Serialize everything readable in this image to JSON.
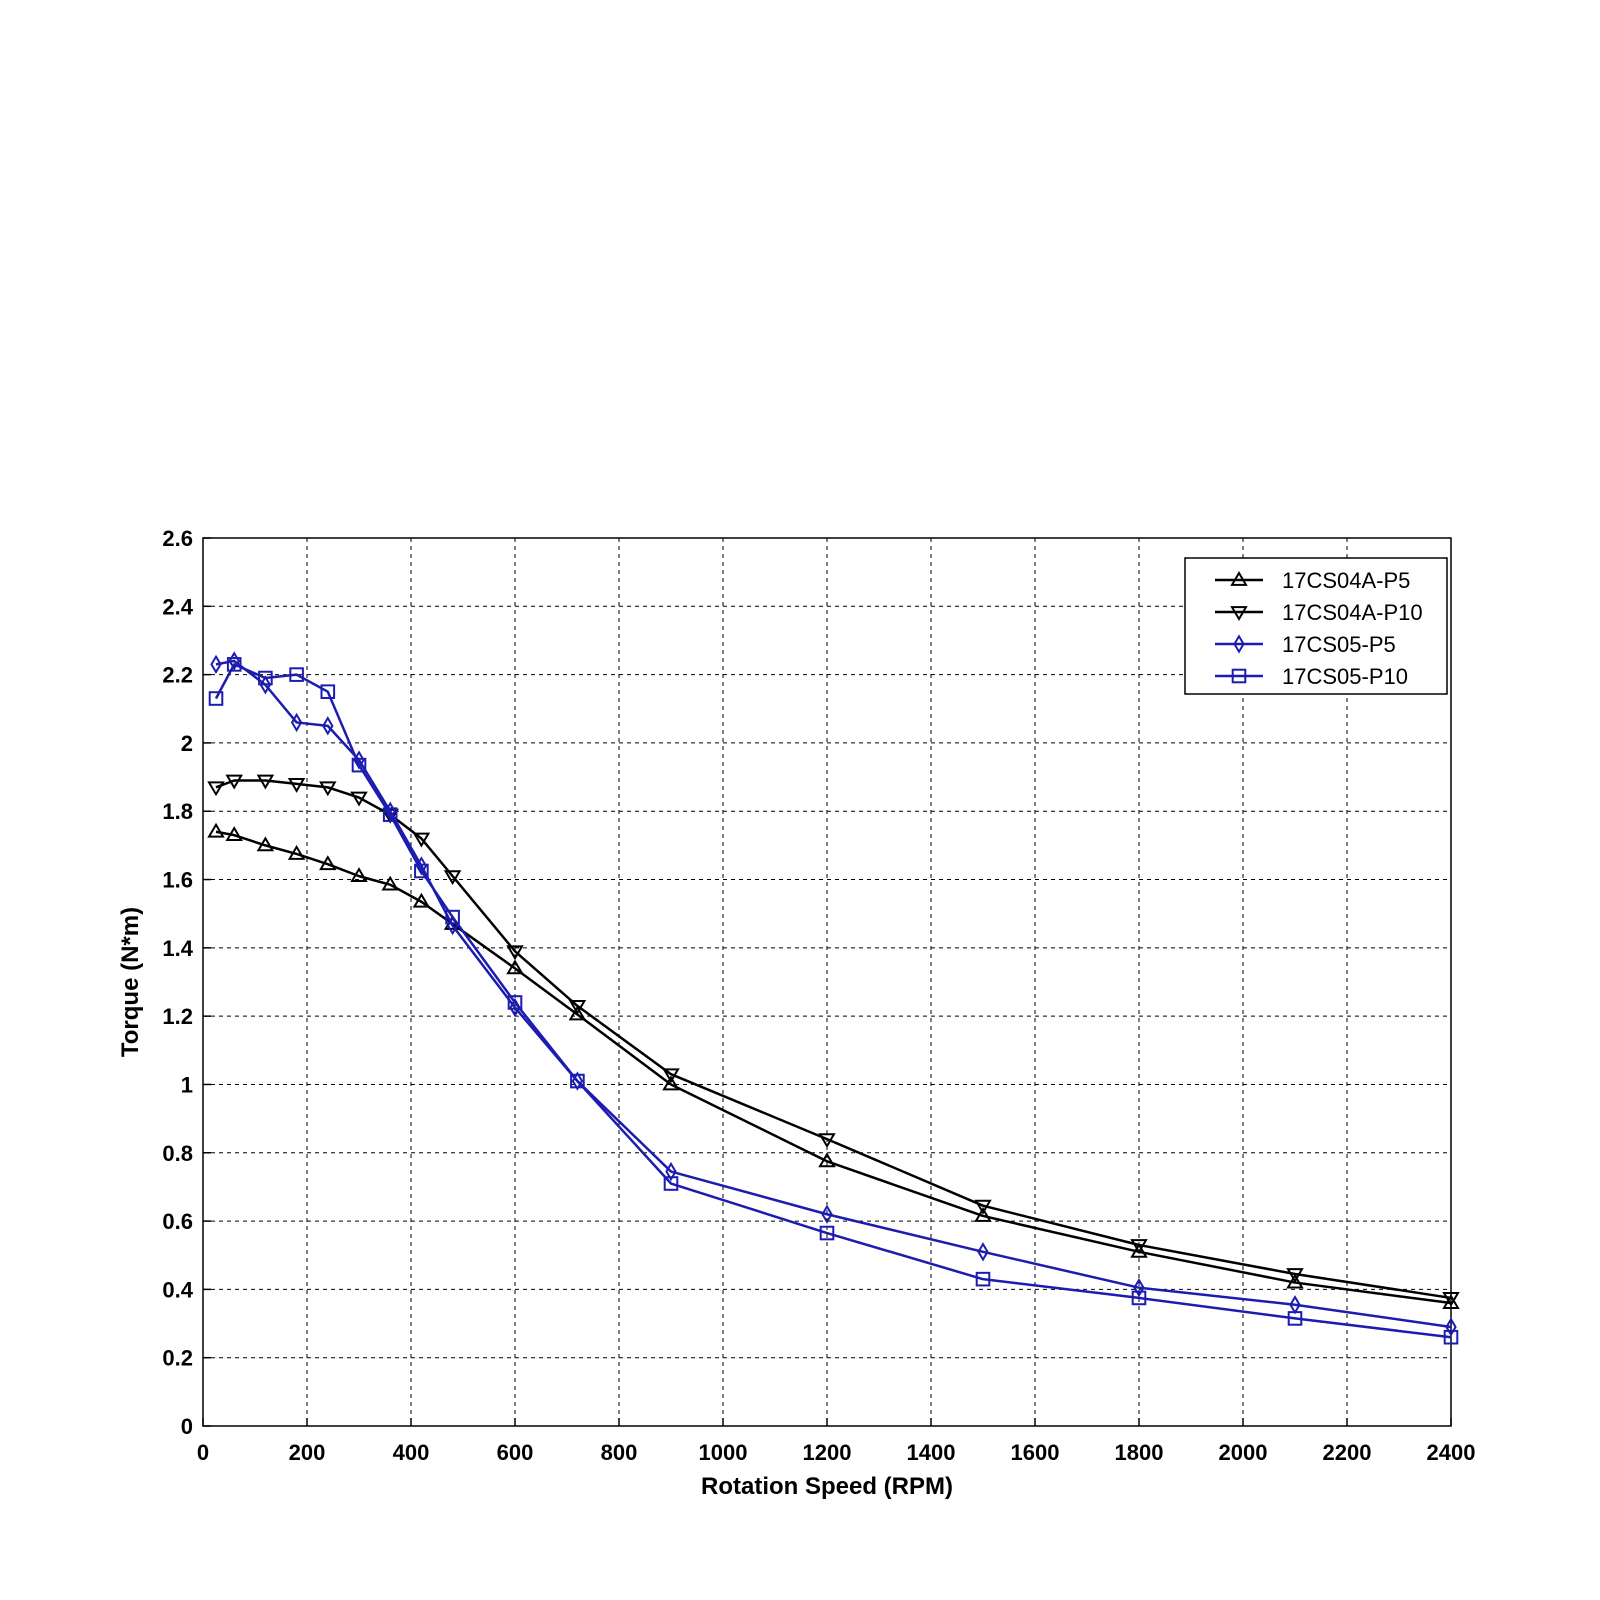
{
  "chart_data": {
    "type": "line",
    "title": "",
    "xlabel": "Rotation Speed (RPM)",
    "ylabel": "Torque (N*m)",
    "xlim": [
      0,
      2400
    ],
    "ylim": [
      0,
      2.6
    ],
    "xticks": [
      "0",
      "200",
      "400",
      "600",
      "800",
      "1000",
      "1200",
      "1400",
      "1600",
      "1800",
      "2000",
      "2200",
      "2400"
    ],
    "yticks": [
      "0",
      "0.2",
      "0.4",
      "0.6",
      "0.8",
      "1",
      "1.2",
      "1.4",
      "1.6",
      "1.8",
      "2",
      "2.2",
      "2.4",
      "2.6"
    ],
    "grid": true,
    "legend_position": "top-right",
    "series": [
      {
        "name": "17CS04A-P5",
        "color": "#000000",
        "marker": "triangle-up",
        "x": [
          25,
          60,
          120,
          180,
          240,
          300,
          360,
          420,
          480,
          600,
          720,
          900,
          1200,
          1500,
          1800,
          2100,
          2400
        ],
        "y": [
          1.74,
          1.73,
          1.7,
          1.675,
          1.645,
          1.61,
          1.585,
          1.535,
          1.47,
          1.34,
          1.205,
          1.0,
          0.775,
          0.615,
          0.51,
          0.42,
          0.36
        ]
      },
      {
        "name": "17CS04A-P10",
        "color": "#000000",
        "marker": "triangle-down",
        "x": [
          25,
          60,
          120,
          180,
          240,
          300,
          360,
          420,
          480,
          600,
          720,
          900,
          1200,
          1500,
          1800,
          2100,
          2400
        ],
        "y": [
          1.87,
          1.89,
          1.89,
          1.88,
          1.87,
          1.84,
          1.79,
          1.72,
          1.61,
          1.39,
          1.23,
          1.03,
          0.84,
          0.645,
          0.53,
          0.445,
          0.375
        ]
      },
      {
        "name": "17CS05-P5",
        "color": "#1c1cb0",
        "marker": "diamond",
        "x": [
          25,
          60,
          120,
          180,
          240,
          300,
          360,
          420,
          480,
          600,
          720,
          900,
          1200,
          1500,
          1800,
          2100,
          2400
        ],
        "y": [
          2.23,
          2.24,
          2.17,
          2.06,
          2.05,
          1.95,
          1.8,
          1.64,
          1.465,
          1.225,
          1.01,
          0.745,
          0.62,
          0.51,
          0.405,
          0.355,
          0.29
        ]
      },
      {
        "name": "17CS05-P10",
        "color": "#1c1cb0",
        "marker": "square",
        "x": [
          25,
          60,
          120,
          180,
          240,
          300,
          360,
          420,
          480,
          600,
          720,
          900,
          1200,
          1500,
          1800,
          2100,
          2400
        ],
        "y": [
          2.13,
          2.23,
          2.19,
          2.2,
          2.15,
          1.935,
          1.79,
          1.625,
          1.49,
          1.24,
          1.01,
          0.71,
          0.565,
          0.43,
          0.375,
          0.315,
          0.26
        ]
      }
    ]
  }
}
